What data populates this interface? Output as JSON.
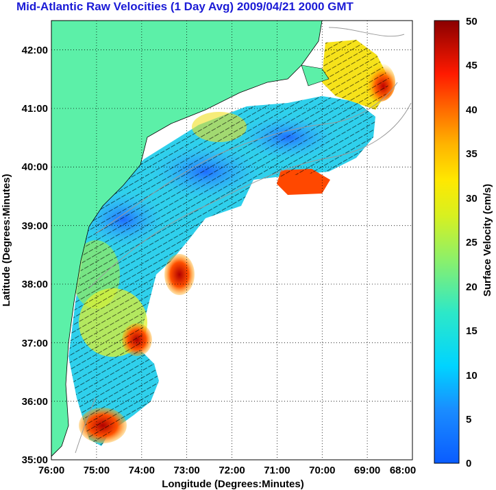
{
  "title": "Mid-Atlantic Raw Velocities (1 Day Avg) 2009/04/21 2000 GMT",
  "map": {
    "xlabel": "Longitude (Degrees:Minutes)",
    "ylabel": "Latitude (Degrees:Minutes)",
    "x_ticks": [
      "76:00",
      "75:00",
      "74:00",
      "73:00",
      "72:00",
      "71:00",
      "70:00",
      "69:00",
      "68:00"
    ],
    "y_ticks": [
      "42:00",
      "41:00",
      "40:00",
      "39:00",
      "38:00",
      "37:00",
      "36:00",
      "35:00"
    ],
    "lon_range": [
      -76,
      -68
    ],
    "lat_range": [
      35,
      42.5
    ],
    "land_color": "#5cf0a8",
    "grid": "dotted"
  },
  "colorbar": {
    "label": "Surface Velocity (cm/s)",
    "ticks": [
      "50",
      "45",
      "40",
      "35",
      "30",
      "25",
      "20",
      "15",
      "10",
      "5",
      "0"
    ],
    "range": [
      0,
      50
    ]
  }
}
